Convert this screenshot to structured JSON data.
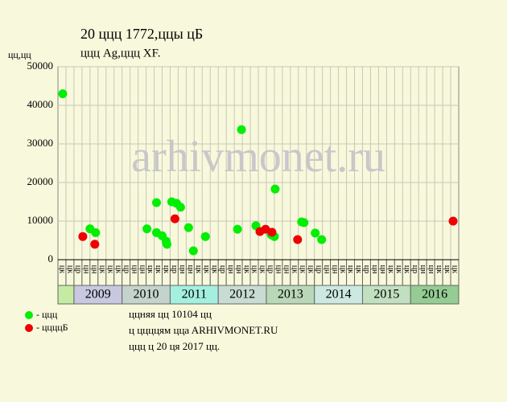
{
  "chart_data": {
    "type": "scatter",
    "title": "20 ццц 1772,ццы цБ",
    "subtitle": "ццц Ag,ццц XF.",
    "y_label": "цц,цц",
    "watermark": "arhivmonet.ru",
    "xlim": [
      0,
      50
    ],
    "ylim": [
      0,
      50000
    ],
    "yticks": [
      0,
      10000,
      20000,
      30000,
      40000,
      50000
    ],
    "grid": true,
    "columns": [
      "цк",
      "цк",
      "цр",
      "цн",
      "цн",
      "цк",
      "цк",
      "цк",
      "цр",
      "цн",
      "цн",
      "цк",
      "цк",
      "цк",
      "цр",
      "цн",
      "цн",
      "цк",
      "цк",
      "цк",
      "цр",
      "цн",
      "цн",
      "цк",
      "цк",
      "цк",
      "цр",
      "цн",
      "цн",
      "цк",
      "цк",
      "цк",
      "цр",
      "цн",
      "цн",
      "цк",
      "цк",
      "цк",
      "цр",
      "цн",
      "цн",
      "цк",
      "цк",
      "цк",
      "цр",
      "цн",
      "цн",
      "цк",
      "цк",
      "цк"
    ],
    "years": [
      {
        "label": null,
        "start": 0,
        "end": 2,
        "color": "#c4eaa4"
      },
      {
        "label": "2009",
        "start": 2,
        "end": 8,
        "color": "#c8c8e0"
      },
      {
        "label": "2010",
        "start": 8,
        "end": 14,
        "color": "#c4d4cc"
      },
      {
        "label": "2011",
        "start": 14,
        "end": 20,
        "color": "#a4f0e0"
      },
      {
        "label": "2012",
        "start": 20,
        "end": 26,
        "color": "#c8dcd4"
      },
      {
        "label": "2013",
        "start": 26,
        "end": 32,
        "color": "#b8d8b8"
      },
      {
        "label": "2014",
        "start": 32,
        "end": 38,
        "color": "#cce8e0"
      },
      {
        "label": "2015",
        "start": 38,
        "end": 44,
        "color": "#c0e0c0"
      },
      {
        "label": "2016",
        "start": 44,
        "end": 50,
        "color": "#94cc94"
      }
    ],
    "series": [
      {
        "name": "- ццц",
        "color": "#00ee00",
        "x": [
          0.6,
          4.0,
          4.7,
          11.1,
          12.3,
          12.3,
          13.0,
          13.5,
          13.6,
          14.2,
          14.8,
          15.3,
          16.3,
          16.9,
          18.4,
          22.4,
          22.9,
          24.7,
          26.6,
          27.0,
          27.1,
          30.4,
          30.7,
          32.1,
          32.9
        ],
        "values": [
          43000,
          8000,
          7000,
          8000,
          14800,
          7000,
          6200,
          4800,
          4000,
          15000,
          14600,
          13600,
          8300,
          2300,
          6000,
          7900,
          33700,
          8800,
          6500,
          6000,
          18300,
          9800,
          9600,
          6900,
          5200
        ]
      },
      {
        "name": "- ццццБ",
        "color": "#ee0000",
        "x": [
          3.1,
          4.6,
          14.6,
          25.2,
          25.9,
          26.7,
          29.9,
          49.3
        ],
        "values": [
          6000,
          4000,
          10600,
          7300,
          7900,
          7100,
          5200,
          10000
        ]
      }
    ],
    "footer": [
      "ццняя цц 10104 цц",
      "ц ццццям ццa ARHIVMONET.RU",
      "ццц ц 20 ця 2017 цц."
    ]
  }
}
